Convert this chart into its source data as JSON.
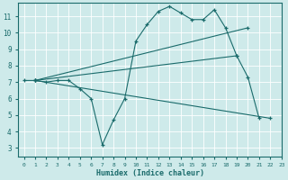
{
  "xlabel": "Humidex (Indice chaleur)",
  "bg_color": "#ceeaea",
  "line_color": "#1a6b6b",
  "grid_color": "#ffffff",
  "xlim": [
    -0.5,
    23
  ],
  "ylim": [
    2.5,
    11.8
  ],
  "xticks": [
    0,
    1,
    2,
    3,
    4,
    5,
    6,
    7,
    8,
    9,
    10,
    11,
    12,
    13,
    14,
    15,
    16,
    17,
    18,
    19,
    20,
    21,
    22,
    23
  ],
  "yticks": [
    3,
    4,
    5,
    6,
    7,
    8,
    9,
    10,
    11
  ],
  "line1_x": [
    0,
    1,
    2,
    3,
    4,
    5,
    6,
    7,
    8,
    9,
    10,
    11,
    12,
    13,
    14,
    15,
    16,
    17,
    18,
    19,
    20,
    21
  ],
  "line1_y": [
    7.1,
    7.1,
    7.0,
    7.1,
    7.1,
    6.6,
    6.0,
    3.2,
    4.7,
    6.0,
    9.5,
    10.5,
    11.3,
    11.6,
    11.2,
    10.8,
    10.8,
    11.4,
    10.3,
    8.6,
    7.3,
    4.8
  ],
  "line2_x": [
    1,
    22
  ],
  "line2_y": [
    7.1,
    4.8
  ],
  "line3_x": [
    1,
    20
  ],
  "line3_y": [
    7.1,
    10.3
  ],
  "line4_x": [
    1,
    19
  ],
  "line4_y": [
    7.1,
    8.6
  ],
  "figsize": [
    3.2,
    2.0
  ],
  "dpi": 100
}
